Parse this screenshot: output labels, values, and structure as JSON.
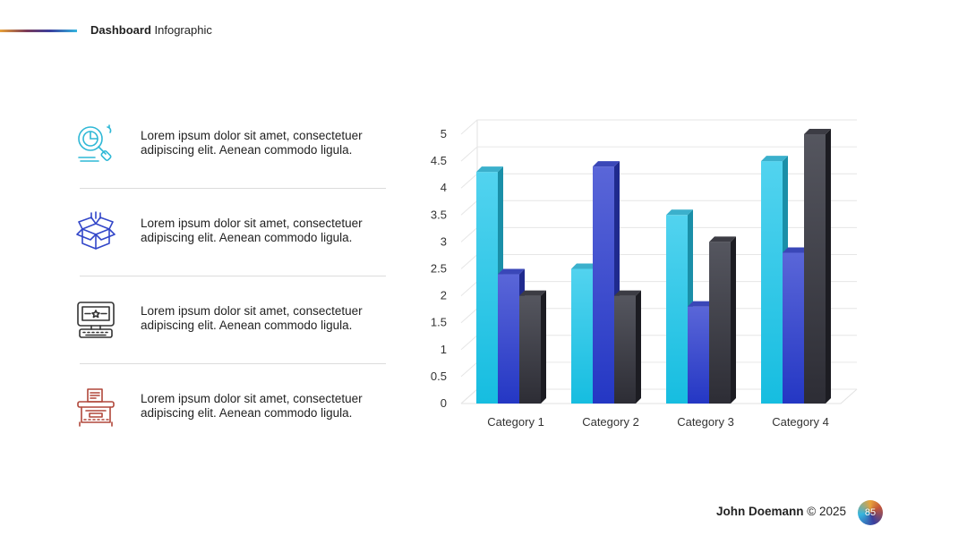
{
  "header": {
    "title_bold": "Dashboard",
    "title_rest": " Infographic"
  },
  "colors": {
    "series1": "#2ec8e8",
    "series2": "#3347c9",
    "series3": "#3a3a44",
    "icon1": "#2fb8d6",
    "icon2": "#3347c9",
    "icon3": "#333333",
    "icon4": "#b0473a"
  },
  "items": [
    {
      "icon": "analytics-magnifier-icon",
      "text": "Lorem ipsum dolor sit amet, consectetuer adipiscing elit. Aenean commodo ligula."
    },
    {
      "icon": "open-box-icon",
      "text": "Lorem ipsum dolor sit amet, consectetuer adipiscing elit. Aenean commodo ligula."
    },
    {
      "icon": "monitor-keyboard-icon",
      "text": "Lorem ipsum dolor sit amet, consectetuer adipiscing elit. Aenean commodo ligula."
    },
    {
      "icon": "typewriter-icon",
      "text": "Lorem ipsum dolor sit amet, consectetuer adipiscing elit. Aenean commodo ligula."
    }
  ],
  "chart_data": {
    "type": "bar",
    "categories": [
      "Category 1",
      "Category 2",
      "Category 3",
      "Category 4"
    ],
    "series": [
      {
        "values": [
          4.3,
          2.5,
          3.5,
          4.5
        ]
      },
      {
        "values": [
          2.4,
          4.4,
          1.8,
          2.8
        ]
      },
      {
        "values": [
          2.0,
          2.0,
          3.0,
          5.0
        ]
      }
    ],
    "ylim": [
      0,
      5
    ],
    "yticks": [
      "0",
      "0.5",
      "1",
      "1.5",
      "2",
      "2.5",
      "3",
      "3.5",
      "4",
      "4.5",
      "5"
    ],
    "grid": true,
    "legend": "none",
    "style": "3d-column"
  },
  "footer": {
    "author": "John Doemann",
    "copyright": " © 2025",
    "page_number": "85"
  }
}
